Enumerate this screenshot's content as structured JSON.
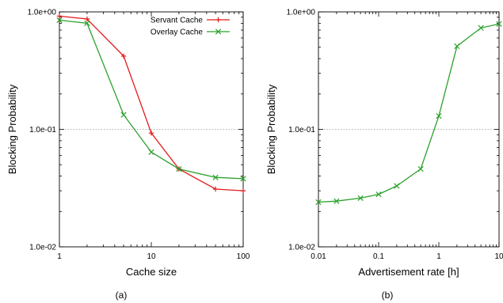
{
  "chart_data": [
    {
      "type": "line",
      "caption": "(a)",
      "xlabel": "Cache size",
      "ylabel": "Blocking Probability",
      "xscale": "log",
      "yscale": "log",
      "xlim": [
        1,
        100
      ],
      "ylim": [
        0.01,
        1.0
      ],
      "xticks": [
        1,
        10,
        100
      ],
      "xtick_labels": [
        "1",
        "10",
        "100"
      ],
      "yticks": [
        0.01,
        0.1,
        1.0
      ],
      "ytick_labels": [
        "1.0e-02",
        "1.0e-01",
        "1.0e+00"
      ],
      "gridline_at": 0.1,
      "legend_position": "top-right",
      "series": [
        {
          "name": "Servant Cache",
          "color": "#e41a1c",
          "marker": "plus",
          "x": [
            1,
            2,
            5,
            10,
            20,
            50,
            100
          ],
          "y": [
            0.92,
            0.87,
            0.42,
            0.093,
            0.046,
            0.031,
            0.03
          ]
        },
        {
          "name": "Overlay Cache",
          "color": "#2ca02c",
          "marker": "cross",
          "x": [
            1,
            2,
            5,
            10,
            20,
            50,
            100
          ],
          "y": [
            0.85,
            0.8,
            0.133,
            0.064,
            0.046,
            0.039,
            0.038
          ]
        }
      ]
    },
    {
      "type": "line",
      "caption": "(b)",
      "xlabel": "Advertisement rate [h]",
      "ylabel": "Blocking Probability",
      "xscale": "log",
      "yscale": "log",
      "xlim": [
        0.01,
        10
      ],
      "ylim": [
        0.01,
        1.0
      ],
      "xticks": [
        0.01,
        0.1,
        1,
        10
      ],
      "xtick_labels": [
        "0.01",
        "0.1",
        "1",
        "10"
      ],
      "yticks": [
        0.01,
        0.1,
        1.0
      ],
      "ytick_labels": [
        "1.0e-02",
        "1.0e-01",
        "1.0e+00"
      ],
      "gridline_at": 0.1,
      "series": [
        {
          "color": "#2ca02c",
          "marker": "cross",
          "x": [
            0.01,
            0.02,
            0.05,
            0.1,
            0.2,
            0.5,
            1,
            2,
            5,
            10
          ],
          "y": [
            0.024,
            0.0245,
            0.026,
            0.028,
            0.033,
            0.046,
            0.13,
            0.51,
            0.73,
            0.79
          ]
        }
      ]
    }
  ]
}
